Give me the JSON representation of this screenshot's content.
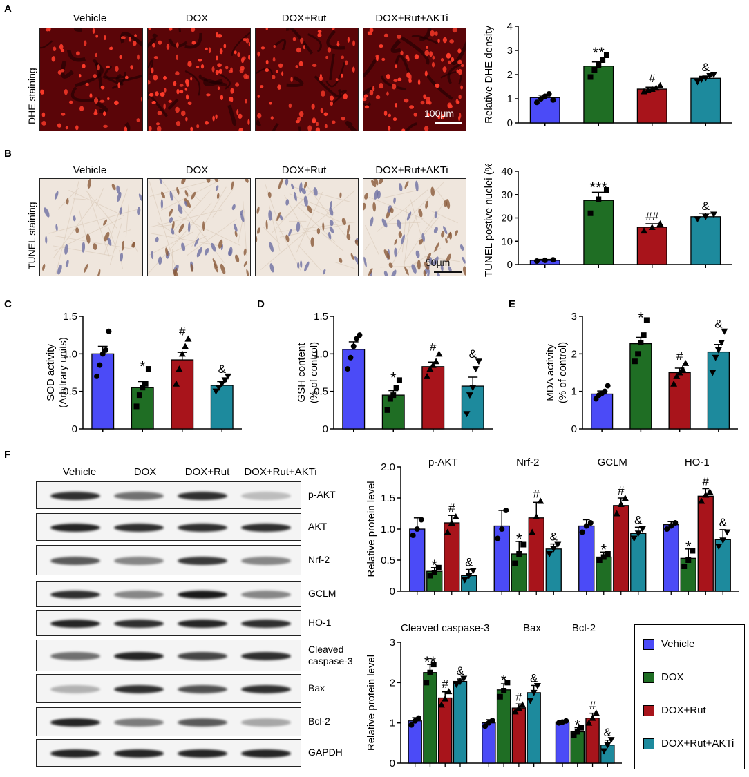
{
  "groups": [
    "Vehicle",
    "DOX",
    "DOX+Rut",
    "DOX+Rut+AKTi"
  ],
  "colors": {
    "Vehicle": "#4b4bf7",
    "DOX": "#1f6e24",
    "DOX+Rut": "#a8141b",
    "DOX+Rut+AKTi": "#1d8a9d"
  },
  "panels": {
    "A": {
      "letter": "A",
      "stain_label": "DHE staining",
      "scale_bar": "100μm"
    },
    "B": {
      "letter": "B",
      "stain_label": "TUNEL staining",
      "scale_bar": "50μm"
    },
    "C": {
      "letter": "C"
    },
    "D": {
      "letter": "D"
    },
    "E": {
      "letter": "E"
    },
    "F": {
      "letter": "F",
      "blot_labels": [
        "p-AKT",
        "AKT",
        "Nrf-2",
        "GCLM",
        "HO-1",
        "Cleaved\ncaspase-3",
        "Bax",
        "Bcl-2",
        "GAPDH"
      ]
    }
  },
  "legend": [
    "Vehicle",
    "DOX",
    "DOX+Rut",
    "DOX+Rut+AKTi"
  ],
  "chart_data": [
    {
      "id": "A",
      "type": "bar",
      "ylabel": "Relative DHE density",
      "ylim": [
        0,
        4
      ],
      "yticks": [
        0,
        1,
        2,
        3,
        4
      ],
      "categories": [
        "Vehicle",
        "DOX",
        "DOX+Rut",
        "DOX+Rut+AKTi"
      ],
      "values": [
        1.05,
        2.35,
        1.4,
        1.85
      ],
      "errors": [
        0.1,
        0.17,
        0.08,
        0.08
      ],
      "points": [
        [
          0.85,
          1.0,
          1.1,
          1.2,
          0.95
        ],
        [
          1.9,
          2.2,
          2.4,
          2.6,
          2.8
        ],
        [
          1.3,
          1.35,
          1.4,
          1.45,
          1.55
        ],
        [
          1.7,
          1.8,
          1.85,
          1.95,
          2.0
        ]
      ],
      "annotations": [
        "",
        "**",
        "#",
        "&"
      ]
    },
    {
      "id": "B",
      "type": "bar",
      "ylabel": "TUNEL postive nuclei (%)",
      "ylim": [
        0,
        40
      ],
      "yticks": [
        0,
        10,
        20,
        30,
        40
      ],
      "categories": [
        "Vehicle",
        "DOX",
        "DOX+Rut",
        "DOX+Rut+AKTi"
      ],
      "values": [
        1.8,
        27.5,
        16,
        20.5
      ],
      "errors": [
        0.4,
        3.5,
        1.5,
        1.5
      ],
      "points": [
        [
          1.5,
          1.8,
          2.0
        ],
        [
          22,
          28,
          32
        ],
        [
          14.5,
          16,
          17.5
        ],
        [
          19.5,
          20.5,
          21.5
        ]
      ],
      "annotations": [
        "",
        "***",
        "##",
        "&"
      ]
    },
    {
      "id": "C",
      "type": "bar",
      "ylabel": "SOD activity",
      "ylabel2": "(Arbitrary units)",
      "ylim": [
        0,
        1.5
      ],
      "yticks": [
        0,
        0.5,
        1.0,
        1.5
      ],
      "categories": [
        "Vehicle",
        "DOX",
        "DOX+Rut",
        "DOX+Rut+AKTi"
      ],
      "values": [
        1.0,
        0.55,
        0.92,
        0.58
      ],
      "errors": [
        0.1,
        0.08,
        0.1,
        0.05
      ],
      "points": [
        [
          0.7,
          0.85,
          1.0,
          1.05,
          1.3
        ],
        [
          0.3,
          0.45,
          0.55,
          0.6,
          0.8
        ],
        [
          0.6,
          0.8,
          1.0,
          1.1,
          1.2
        ],
        [
          0.5,
          0.55,
          0.6,
          0.65,
          0.7
        ]
      ],
      "annotations": [
        "",
        "*",
        "#",
        "&"
      ]
    },
    {
      "id": "D",
      "type": "bar",
      "ylabel": "GSH content",
      "ylabel2": "(% of control)",
      "ylim": [
        0,
        1.5
      ],
      "yticks": [
        0,
        0.5,
        1.0,
        1.5
      ],
      "categories": [
        "Vehicle",
        "DOX",
        "DOX+Rut",
        "DOX+Rut+AKTi"
      ],
      "values": [
        1.06,
        0.45,
        0.83,
        0.57
      ],
      "errors": [
        0.1,
        0.06,
        0.06,
        0.12
      ],
      "points": [
        [
          0.8,
          0.95,
          1.1,
          1.2,
          1.25
        ],
        [
          0.25,
          0.4,
          0.45,
          0.55,
          0.65
        ],
        [
          0.7,
          0.8,
          0.85,
          0.9,
          1.0
        ],
        [
          0.2,
          0.45,
          0.55,
          0.8,
          0.9
        ]
      ],
      "annotations": [
        "",
        "*",
        "#",
        "&"
      ]
    },
    {
      "id": "E",
      "type": "bar",
      "ylabel": "MDA activity",
      "ylabel2": "(% of control)",
      "ylim": [
        0,
        3
      ],
      "yticks": [
        0,
        1,
        2,
        3
      ],
      "categories": [
        "Vehicle",
        "DOX",
        "DOX+Rut",
        "DOX+Rut+AKTi"
      ],
      "values": [
        0.93,
        2.27,
        1.5,
        2.05
      ],
      "errors": [
        0.08,
        0.17,
        0.12,
        0.2
      ],
      "points": [
        [
          0.8,
          0.9,
          0.95,
          1.0,
          1.15
        ],
        [
          1.8,
          2.0,
          2.3,
          2.5,
          2.9
        ],
        [
          1.2,
          1.4,
          1.5,
          1.6,
          1.75
        ],
        [
          1.5,
          1.9,
          2.1,
          2.3,
          2.6
        ]
      ],
      "annotations": [
        "",
        "*",
        "#",
        "&"
      ]
    },
    {
      "id": "F1",
      "type": "bar",
      "ylabel": "Relative protein level",
      "ylim": [
        0,
        2.0
      ],
      "yticks": [
        0,
        0.5,
        1.0,
        1.5,
        2.0
      ],
      "categories": [
        "p-AKT",
        "Nrf-2",
        "GCLM",
        "HO-1"
      ],
      "series": [
        {
          "name": "Vehicle",
          "values": [
            1.0,
            1.05,
            1.05,
            1.07
          ],
          "errors": [
            0.18,
            0.25,
            0.1,
            0.05
          ],
          "points": [
            [
              0.9,
              1.0,
              1.15
            ],
            [
              0.85,
              1.0,
              1.3
            ],
            [
              0.95,
              1.05,
              1.1
            ],
            [
              1.0,
              1.05,
              1.1
            ]
          ]
        },
        {
          "name": "DOX",
          "values": [
            0.32,
            0.6,
            0.55,
            0.53
          ],
          "errors": [
            0.06,
            0.2,
            0.08,
            0.15
          ],
          "points": [
            [
              0.25,
              0.3,
              0.38
            ],
            [
              0.45,
              0.6,
              0.75
            ],
            [
              0.5,
              0.55,
              0.6
            ],
            [
              0.4,
              0.5,
              0.65
            ]
          ]
        },
        {
          "name": "DOX+Rut",
          "values": [
            1.1,
            1.18,
            1.38,
            1.53
          ],
          "errors": [
            0.12,
            0.25,
            0.12,
            0.12
          ],
          "points": [
            [
              0.95,
              1.1,
              1.2
            ],
            [
              0.95,
              1.2,
              1.45
            ],
            [
              1.25,
              1.4,
              1.5
            ],
            [
              1.45,
              1.55,
              1.6
            ]
          ]
        },
        {
          "name": "DOX+Rut+AKTi",
          "values": [
            0.25,
            0.68,
            0.93,
            0.83
          ],
          "errors": [
            0.1,
            0.08,
            0.1,
            0.16
          ],
          "points": [
            [
              0.18,
              0.25,
              0.33
            ],
            [
              0.6,
              0.68,
              0.75
            ],
            [
              0.85,
              0.93,
              1.0
            ],
            [
              0.72,
              0.82,
              0.95
            ]
          ]
        }
      ],
      "annotations": [
        [
          "",
          "*",
          "#",
          "&"
        ],
        [
          "",
          "*",
          "#",
          "&"
        ],
        [
          "",
          "*",
          "#",
          "&"
        ],
        [
          "",
          "*",
          "#",
          "&"
        ]
      ]
    },
    {
      "id": "F2",
      "type": "bar",
      "ylabel": "Relative protein level",
      "ylim": [
        0,
        3
      ],
      "yticks": [
        0,
        1,
        2,
        3
      ],
      "categories": [
        "Cleaved caspase-3",
        "Bax",
        "Bcl-2"
      ],
      "series": [
        {
          "name": "Vehicle",
          "values": [
            1.05,
            1.0,
            1.02
          ],
          "errors": [
            0.08,
            0.08,
            0.04
          ],
          "points": [
            [
              0.95,
              1.05,
              1.12
            ],
            [
              0.92,
              1.0,
              1.06
            ],
            [
              1.0,
              1.02,
              1.05
            ]
          ]
        },
        {
          "name": "DOX",
          "values": [
            2.25,
            1.82,
            0.78
          ],
          "errors": [
            0.2,
            0.15,
            0.1
          ],
          "points": [
            [
              2.0,
              2.25,
              2.45
            ],
            [
              1.65,
              1.8,
              2.0
            ],
            [
              0.7,
              0.78,
              0.88
            ]
          ]
        },
        {
          "name": "DOX+Rut",
          "values": [
            1.62,
            1.37,
            1.12
          ],
          "errors": [
            0.15,
            0.1,
            0.12
          ],
          "points": [
            [
              1.45,
              1.6,
              1.78
            ],
            [
              1.28,
              1.37,
              1.45
            ],
            [
              1.0,
              1.12,
              1.25
            ]
          ]
        },
        {
          "name": "DOX+Rut+AKTi",
          "values": [
            2.03,
            1.75,
            0.45
          ],
          "errors": [
            0.08,
            0.18,
            0.12
          ],
          "points": [
            [
              1.95,
              2.02,
              2.1
            ],
            [
              1.55,
              1.75,
              1.92
            ],
            [
              0.3,
              0.45,
              0.58
            ]
          ]
        }
      ],
      "annotations": [
        [
          "",
          "**",
          "#",
          "&"
        ],
        [
          "",
          "*",
          "#",
          "&"
        ],
        [
          "",
          "*",
          "#",
          "&"
        ]
      ]
    }
  ]
}
